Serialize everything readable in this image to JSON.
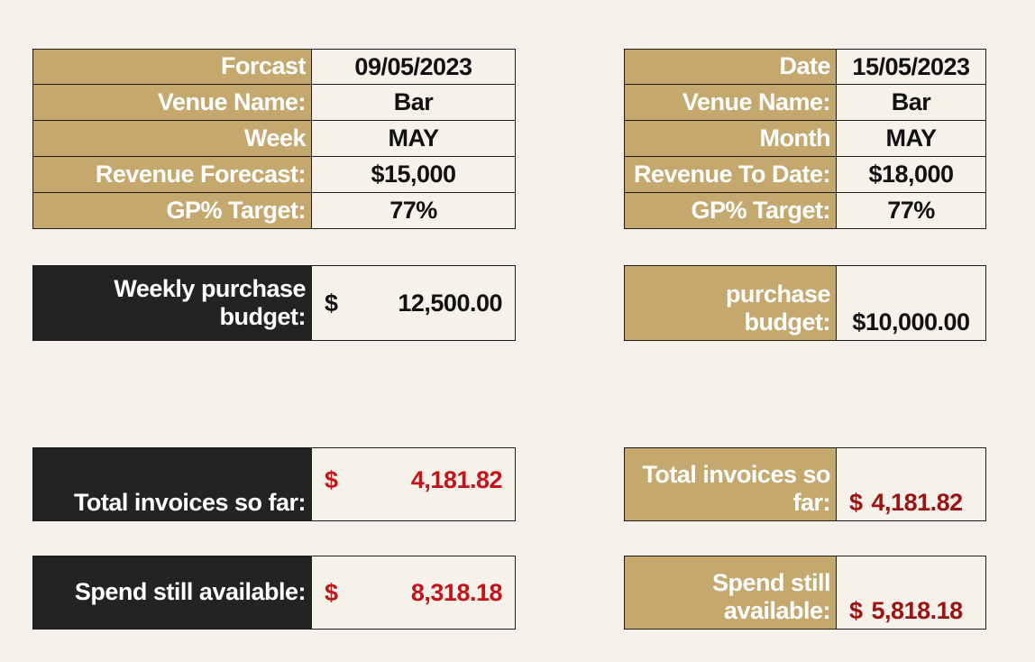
{
  "left_info": {
    "rows": [
      {
        "label": "Forcast",
        "value": "09/05/2023"
      },
      {
        "label": "Venue Name:",
        "value": "Bar"
      },
      {
        "label": "Week",
        "value": "MAY"
      },
      {
        "label": "Revenue Forecast:",
        "value": "$15,000"
      },
      {
        "label": "GP% Target:",
        "value": "77%"
      }
    ]
  },
  "right_info": {
    "rows": [
      {
        "label": "Date",
        "value": "15/05/2023"
      },
      {
        "label": "Venue Name:",
        "value": "Bar"
      },
      {
        "label": "Month",
        "value": "MAY"
      },
      {
        "label": "Revenue To Date:",
        "value": "$18,000"
      },
      {
        "label": "GP% Target:",
        "value": "77%"
      }
    ]
  },
  "left_budget": {
    "label_line1": "Weekly purchase",
    "label_line2": "budget:",
    "currency": "$",
    "amount": "12,500.00"
  },
  "right_budget": {
    "label_line1": "purchase",
    "label_line2": "budget:",
    "amount": "$10,000.00"
  },
  "left_invoices": {
    "label": "Total invoices so far:",
    "currency": "$",
    "amount": "4,181.82"
  },
  "right_invoices": {
    "label_line1": "Total invoices so",
    "label_line2": "far:",
    "currency": "$",
    "amount": "4,181.82"
  },
  "left_spend": {
    "label": "Spend still available:",
    "currency": "$",
    "amount": "8,318.18"
  },
  "right_spend": {
    "label_line1": "Spend still",
    "label_line2": "available:",
    "currency": "$",
    "amount": "5,818.18"
  },
  "colors": {
    "label_gold": "#c4a86e",
    "label_dark": "#232323",
    "value_bg": "#f6f2ea",
    "money_red": "#c2141a",
    "page_bg": "#f5f1ea"
  }
}
